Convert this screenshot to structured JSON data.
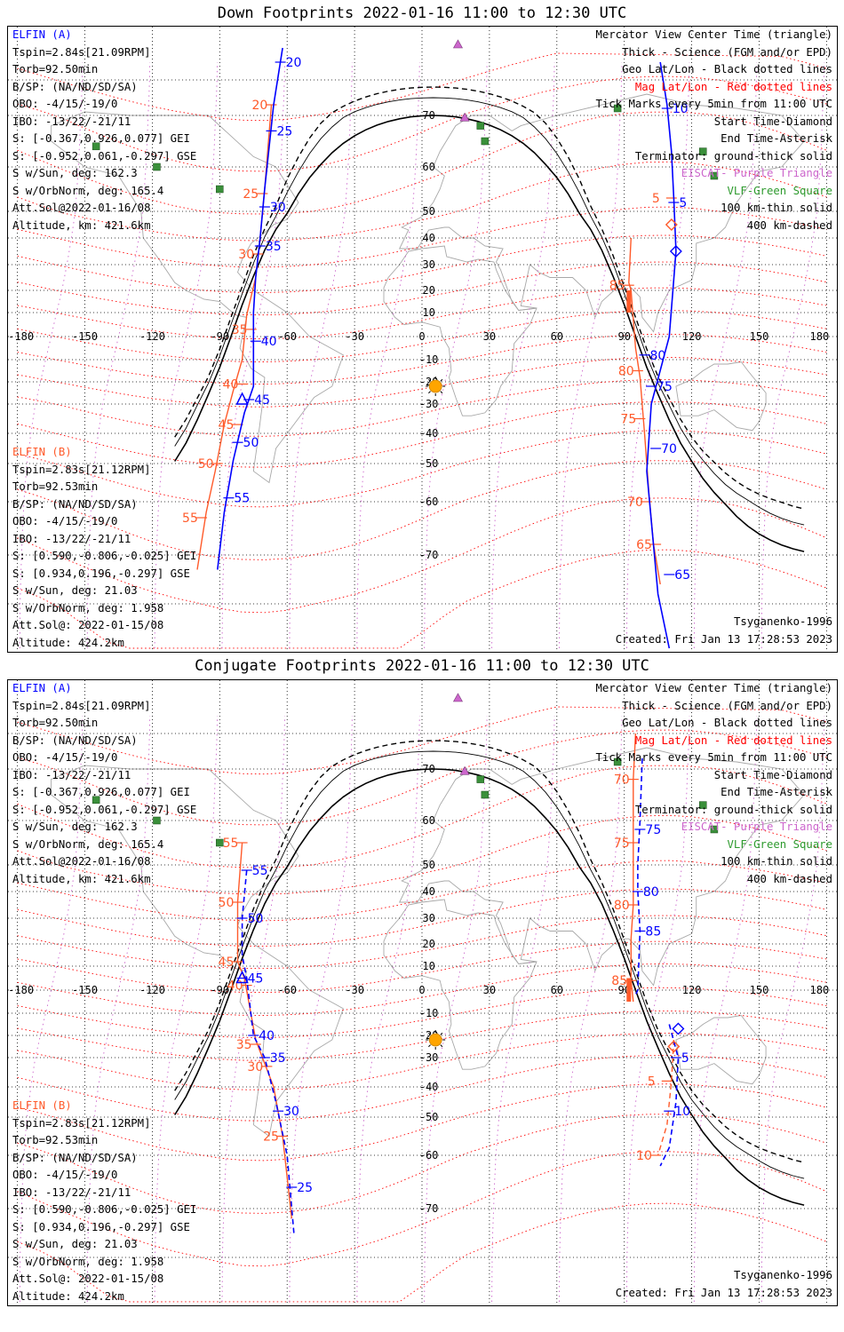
{
  "panels": [
    {
      "title": "Down Footprints 2022-01-16 11:00 to 12:30 UTC",
      "elfin_a": {
        "name": "ELFIN (A)",
        "lines": [
          "Tspin=2.84s[21.09RPM]",
          "Torb=92.50min",
          "B/SP: (NA/ND/SD/SA)",
          "OBO: -4/15/-19/0",
          "IBO: -13/22/-21/11",
          "S: [-0.367,0.926,0.077] GEI",
          "S: [-0.952,0.061,-0.297] GSE",
          "S w/Sun, deg: 162.3",
          "S w/OrbNorm, deg: 165.4",
          "Att.Sol@2022-01-16/08",
          "Altitude, km: 421.6km"
        ]
      },
      "elfin_b": {
        "name": "ELFIN (B)",
        "lines": [
          "Tspin=2.83s[21.12RPM]",
          "Torb=92.53min",
          "B/SP: (NA/ND/SD/SA)",
          "OBO: -4/15/-19/0",
          "IBO: -13/22/-21/11",
          "S: [0.590,-0.806,-0.025] GEI",
          "S: [0.934,0.196,-0.297] GSE",
          "S w/Sun, deg: 21.03",
          "S w/OrbNorm, deg: 1.958",
          "Att.Sol@: 2022-01-15/08",
          "Altitude: 424.2km"
        ]
      },
      "model": "Tsyganenko-1996",
      "created": "Created: Fri Jan 13 17:28:53 2023",
      "a_track": {
        "points": [
          [
            -62,
            89
          ],
          [
            -66,
            73
          ],
          [
            -70,
            55
          ],
          [
            -72,
            40
          ],
          [
            -74,
            25
          ],
          [
            -75,
            10
          ],
          [
            -75,
            -22
          ],
          [
            -79,
            -33
          ],
          [
            -84,
            -49
          ],
          [
            -88,
            -62
          ],
          [
            -91,
            -73
          ]
        ],
        "ticks": [
          [
            "20",
            -63,
            85
          ],
          [
            "25",
            -67,
            67
          ],
          [
            "30",
            -70,
            51
          ],
          [
            "35",
            -72,
            37
          ],
          [
            "40",
            -74,
            -2
          ],
          [
            "45",
            -77,
            -28
          ],
          [
            "50",
            -82,
            -43
          ],
          [
            "55",
            -86,
            -59
          ]
        ]
      },
      "b_track": {
        "points": [
          [
            -67,
            73
          ],
          [
            -70,
            55
          ],
          [
            -72,
            40
          ],
          [
            -74,
            25
          ],
          [
            -78,
            9
          ],
          [
            -80,
            -10
          ],
          [
            -84,
            -24
          ],
          [
            -88,
            -37
          ],
          [
            -92,
            -52
          ],
          [
            -96,
            -62
          ],
          [
            -100,
            -73
          ]
        ],
        "ticks": [
          [
            "20",
            -67,
            73
          ],
          [
            "25",
            -71,
            54
          ],
          [
            "30",
            -73,
            34
          ],
          [
            "35",
            -76,
            3
          ],
          [
            "40",
            -80,
            -21
          ],
          [
            "45",
            -82,
            -37
          ],
          [
            "50",
            -91,
            -50
          ],
          [
            "55",
            -98,
            -63
          ]
        ]
      },
      "a_track2": {
        "points": [
          [
            106,
            85
          ],
          [
            109,
            73
          ],
          [
            111,
            63
          ],
          [
            112,
            53
          ],
          [
            113,
            35
          ],
          [
            110,
            0
          ],
          [
            102,
            -30
          ],
          [
            100,
            -52
          ],
          [
            105,
            -78
          ],
          [
            110,
            -85
          ]
        ],
        "ticks": [
          [
            "10",
            109,
            72
          ],
          [
            "5",
            112,
            52
          ],
          [
            "80",
            99,
            -8
          ],
          [
            "75",
            102,
            -22
          ],
          [
            "70",
            104,
            -45
          ],
          [
            "65",
            110,
            -74
          ]
        ]
      },
      "b_track2": {
        "points": [
          [
            93,
            40
          ],
          [
            92,
            23
          ],
          [
            93,
            20
          ],
          [
            95,
            -5
          ],
          [
            97,
            -18
          ],
          [
            99,
            -40
          ],
          [
            101,
            -58
          ],
          [
            103,
            -68
          ],
          [
            106,
            -76
          ]
        ],
        "ticks": [
          [
            "5",
            111,
            53
          ],
          [
            "85",
            92,
            22
          ],
          [
            "80",
            96,
            -15
          ],
          [
            "75",
            97,
            -35
          ],
          [
            "70",
            100,
            -60
          ],
          [
            "65",
            104,
            -68
          ]
        ]
      }
    },
    {
      "title": "Conjugate Footprints 2022-01-16 11:00 to 12:30 UTC",
      "elfin_a": {
        "name": "ELFIN (A)",
        "lines": [
          "Tspin=2.84s[21.09RPM]",
          "Torb=92.50min",
          "B/SP: (NA/ND/SD/SA)",
          "OBO: -4/15/-19/0",
          "IBO: -13/22/-21/11",
          "S: [-0.367,0.926,0.077] GEI",
          "S: [-0.952,0.061,-0.297] GSE",
          "S w/Sun, deg: 162.3",
          "S w/OrbNorm, deg: 165.4",
          "Att.Sol@2022-01-16/08",
          "Altitude, km: 421.6km"
        ]
      },
      "elfin_b": {
        "name": "ELFIN (B)",
        "lines": [
          "Tspin=2.83s[21.12RPM]",
          "Torb=92.53min",
          "B/SP: (NA/ND/SD/SA)",
          "OBO: -4/15/-19/0",
          "IBO: -13/22/-21/11",
          "S: [0.590,-0.806,-0.025] GEI",
          "S: [0.934,0.196,-0.297] GSE",
          "S w/Sun, deg: 21.03",
          "S w/OrbNorm, deg: 1.958",
          "Att.Sol@: 2022-01-15/08",
          "Altitude: 424.2km"
        ]
      },
      "model": "Tsyganenko-1996",
      "created": "Created: Fri Jan 13 17:28:53 2023",
      "a_track": {
        "points": [
          [
            -78,
            48
          ],
          [
            -80,
            30
          ],
          [
            -80,
            15
          ],
          [
            -78,
            5
          ],
          [
            -75,
            -20
          ],
          [
            -70,
            -30
          ],
          [
            -65,
            -45
          ],
          [
            -60,
            -60
          ],
          [
            -57,
            -75
          ]
        ],
        "ticks": [
          [
            "55",
            -78,
            48
          ],
          [
            "50",
            -80,
            30
          ],
          [
            "45",
            -80,
            5
          ],
          [
            "40",
            -75,
            -20
          ],
          [
            "35",
            -70,
            -30
          ],
          [
            "30",
            -64,
            -48
          ],
          [
            "25",
            -58,
            -66
          ]
        ]
      },
      "b_track": {
        "points": [
          [
            -80,
            55
          ],
          [
            -82,
            36
          ],
          [
            -82,
            12
          ],
          [
            -79,
            5
          ],
          [
            -74,
            -22
          ],
          [
            -70,
            -32
          ],
          [
            -66,
            -40
          ],
          [
            -62,
            -55
          ],
          [
            -58,
            -72
          ]
        ],
        "ticks": [
          [
            "55",
            -80,
            55
          ],
          [
            "50",
            -82,
            36
          ],
          [
            "45",
            -82,
            12
          ],
          [
            "40",
            -78,
            2
          ],
          [
            "35",
            -74,
            -24
          ],
          [
            "30",
            -69,
            -33
          ],
          [
            "25",
            -62,
            -55
          ]
        ]
      },
      "a_track2": {
        "points": [
          [
            98,
            73
          ],
          [
            97,
            60
          ],
          [
            96,
            50
          ],
          [
            96,
            40
          ],
          [
            97,
            25
          ],
          [
            96,
            0
          ],
          [
            95,
            -2
          ]
        ],
        "ticks": [
          [
            "75",
            97,
            58
          ],
          [
            "80",
            96,
            40
          ],
          [
            "85",
            97,
            25
          ]
        ]
      },
      "b_track2": {
        "points": [
          [
            95,
            80
          ],
          [
            94,
            68
          ],
          [
            94,
            55
          ],
          [
            94,
            35
          ],
          [
            93,
            22
          ],
          [
            93,
            4
          ],
          [
            94,
            -5
          ]
        ],
        "ticks": [
          [
            "70",
            94,
            68
          ],
          [
            "75",
            94,
            55
          ],
          [
            "80",
            94,
            35
          ],
          [
            "85",
            93,
            4
          ]
        ]
      },
      "a_track3": {
        "points": [
          [
            110,
            -15
          ],
          [
            114,
            -30
          ],
          [
            113,
            -45
          ],
          [
            110,
            -58
          ],
          [
            106,
            -62
          ]
        ],
        "ticks": [
          [
            "5",
            113,
            -30
          ],
          [
            "10",
            110,
            -48
          ]
        ]
      },
      "b_track3": {
        "points": [
          [
            112,
            -22
          ],
          [
            111,
            -38
          ],
          [
            109,
            -52
          ],
          [
            105,
            -60
          ]
        ],
        "ticks": [
          [
            "5",
            109,
            -38
          ],
          [
            "10",
            104,
            -60
          ]
        ]
      }
    }
  ],
  "legend": [
    {
      "text": "Mercator View Center Time (triangle)",
      "color": "#000000"
    },
    {
      "text": "Thick - Science (FGM and/or EPD)",
      "color": "#000000"
    },
    {
      "text": "Geo Lat/Lon - Black dotted lines",
      "color": "#000000"
    },
    {
      "text": "Mag Lat/Lon - Red dotted lines",
      "color": "#ff0000"
    },
    {
      "text": "Tick Marks every 5min from 11:00 UTC",
      "color": "#000000"
    },
    {
      "text": "Start Time-Diamond",
      "color": "#000000"
    },
    {
      "text": "End Time-Asterisk",
      "color": "#000000"
    },
    {
      "text": "Terminator: ground-thick solid",
      "color": "#000000"
    },
    {
      "text": "EISCAT- Purple Triangle",
      "color": "#cc66cc"
    },
    {
      "text": "VLF-Green Square",
      "color": "#2e9a2e"
    },
    {
      "text": "100 km-thin solid",
      "color": "#000000"
    },
    {
      "text": "400 km-dashed",
      "color": "#000000"
    }
  ],
  "axes": {
    "lon_ticks": [
      "-180",
      "-150",
      "-120",
      "-90",
      "-60",
      "-30",
      "0",
      "30",
      "60",
      "90",
      "120",
      "150",
      "180"
    ],
    "lat_ticks": [
      "70",
      "60",
      "50",
      "40",
      "30",
      "20",
      "10",
      "-10",
      "-20",
      "-30",
      "-40",
      "-50",
      "-60",
      "-70"
    ]
  },
  "colors": {
    "elfin_a": "#0000ff",
    "elfin_b": "#ff5a2a",
    "mag_grid": "#ff0000",
    "geo_grid": "#000000",
    "eiscat": "#cc66cc",
    "vlf": "#2e9a2e",
    "sun": "#ffa500"
  }
}
